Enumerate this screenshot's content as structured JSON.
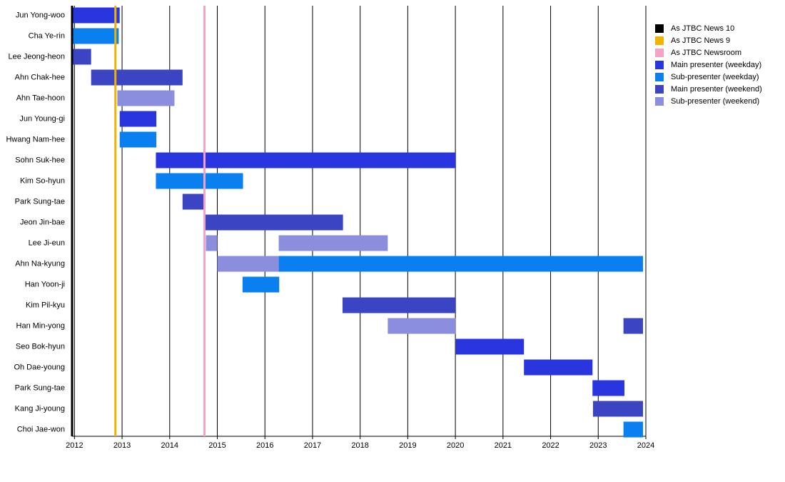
{
  "chart_data": {
    "type": "timeline",
    "categories": [
      "Jun Yong-woo",
      "Cha Ye-rin",
      "Lee Jeong-heon",
      "Ahn Chak-hee",
      "Ahn Tae-hoon",
      "Jun Young-gi",
      "Hwang Nam-hee",
      "Sohn Suk-hee",
      "Kim So-hyun",
      "Park Sung-tae",
      "Jeon Jin-bae",
      "Lee Ji-eun",
      "Ahn Na-kyung",
      "Han Yoon-ji",
      "Kim Pil-kyu",
      "Han Min-yong",
      "Seo Bok-hyun",
      "Oh Dae-young",
      "Park Sung-tae",
      "Kang Ji-young",
      "Choi Jae-won"
    ],
    "xlim": [
      2011.95,
      2024
    ],
    "xticks": [
      2012,
      2013,
      2014,
      2015,
      2016,
      2017,
      2018,
      2019,
      2020,
      2021,
      2022,
      2023,
      2024
    ],
    "grid": true,
    "markers": [
      {
        "name": "As JTBC News 10",
        "color": "#000000",
        "x": 2011.95
      },
      {
        "name": "As JTBC News 9",
        "color": "#f0b400",
        "x": 2012.86
      },
      {
        "name": "As JTBC Newsroom",
        "color": "#f4a3c4",
        "x": 2014.73
      }
    ],
    "series": [
      {
        "name": "Main presenter (weekday)",
        "color": "#2936e0",
        "bars": [
          {
            "row": 0,
            "start": 2011.95,
            "end": 2012.95
          },
          {
            "row": 5,
            "start": 2012.95,
            "end": 2013.72
          },
          {
            "row": 7,
            "start": 2013.71,
            "end": 2020.01
          },
          {
            "row": 16,
            "start": 2020.01,
            "end": 2021.44
          },
          {
            "row": 17,
            "start": 2021.44,
            "end": 2022.88
          },
          {
            "row": 18,
            "start": 2022.88,
            "end": 2023.55
          }
        ]
      },
      {
        "name": "Sub-presenter (weekday)",
        "color": "#0a7ff0",
        "bars": [
          {
            "row": 1,
            "start": 2011.95,
            "end": 2012.93
          },
          {
            "row": 6,
            "start": 2012.95,
            "end": 2013.72
          },
          {
            "row": 8,
            "start": 2013.71,
            "end": 2015.54
          },
          {
            "row": 12,
            "start": 2016.29,
            "end": 2023.94
          },
          {
            "row": 13,
            "start": 2015.53,
            "end": 2016.3
          },
          {
            "row": 20,
            "start": 2023.53,
            "end": 2023.94
          }
        ]
      },
      {
        "name": "Main presenter (weekend)",
        "color": "#3b44c2",
        "bars": [
          {
            "row": 2,
            "start": 2011.95,
            "end": 2012.35
          },
          {
            "row": 3,
            "start": 2012.35,
            "end": 2014.27
          },
          {
            "row": 9,
            "start": 2014.27,
            "end": 2014.73
          },
          {
            "row": 10,
            "start": 2014.73,
            "end": 2017.64
          },
          {
            "row": 14,
            "start": 2017.63,
            "end": 2020.01
          },
          {
            "row": 15,
            "start": 2023.53,
            "end": 2023.94
          },
          {
            "row": 19,
            "start": 2022.89,
            "end": 2023.94
          }
        ]
      },
      {
        "name": "Sub-presenter (weekend)",
        "color": "#8a8edc",
        "bars": [
          {
            "row": 4,
            "start": 2012.9,
            "end": 2014.1
          },
          {
            "row": 11,
            "start": 2014.76,
            "end": 2015.0
          },
          {
            "row": 11,
            "start": 2016.29,
            "end": 2018.58
          },
          {
            "row": 12,
            "start": 2015.0,
            "end": 2016.29
          },
          {
            "row": 15,
            "start": 2018.58,
            "end": 2020.01
          }
        ]
      }
    ]
  }
}
